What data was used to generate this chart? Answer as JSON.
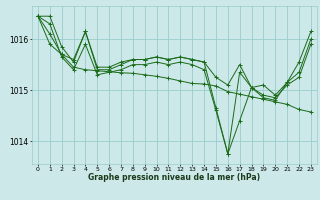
{
  "bg_color": "#cce8e8",
  "grid_color": "#99cccc",
  "line_color": "#1a6b1a",
  "marker_color": "#1a6b1a",
  "xlabel": "Graphe pression niveau de la mer (hPa)",
  "ylabel_ticks": [
    1014,
    1015,
    1016
  ],
  "xlim": [
    -0.5,
    23.5
  ],
  "ylim": [
    1013.55,
    1016.65
  ],
  "xticks": [
    0,
    1,
    2,
    3,
    4,
    5,
    6,
    7,
    8,
    9,
    10,
    11,
    12,
    13,
    14,
    15,
    16,
    17,
    18,
    19,
    20,
    21,
    22,
    23
  ],
  "series": [
    [
      1016.45,
      1016.45,
      1015.85,
      1015.55,
      1016.15,
      1015.45,
      1015.45,
      1015.55,
      1015.6,
      1015.6,
      1015.65,
      1015.6,
      1015.65,
      1015.6,
      1015.55,
      1015.25,
      1015.1,
      1015.5,
      1015.05,
      1014.85,
      1014.8,
      1015.15,
      1015.35,
      1016.0
    ],
    [
      1016.45,
      1016.3,
      1015.65,
      1015.4,
      1015.9,
      1015.3,
      1015.35,
      1015.4,
      1015.5,
      1015.5,
      1015.55,
      1015.5,
      1015.55,
      1015.5,
      1015.4,
      1014.6,
      1013.75,
      1014.4,
      1015.05,
      1014.9,
      1014.85,
      1015.1,
      1015.25,
      1015.9
    ],
    [
      1016.45,
      1016.1,
      1015.7,
      1015.45,
      1015.4,
      1015.38,
      1015.36,
      1015.34,
      1015.33,
      1015.3,
      1015.27,
      1015.23,
      1015.18,
      1015.13,
      1015.12,
      1015.08,
      1014.97,
      1014.92,
      1014.87,
      1014.82,
      1014.77,
      1014.72,
      1014.62,
      1014.57
    ],
    [
      1016.45,
      1015.9,
      1015.7,
      1015.6,
      1016.15,
      1015.4,
      1015.4,
      1015.5,
      1015.6,
      1015.6,
      1015.65,
      1015.6,
      1015.65,
      1015.6,
      1015.55,
      1014.65,
      1013.75,
      1015.35,
      1015.05,
      1015.1,
      1014.9,
      1015.15,
      1015.55,
      1016.15
    ]
  ],
  "figsize": [
    3.2,
    2.0
  ],
  "dpi": 100
}
